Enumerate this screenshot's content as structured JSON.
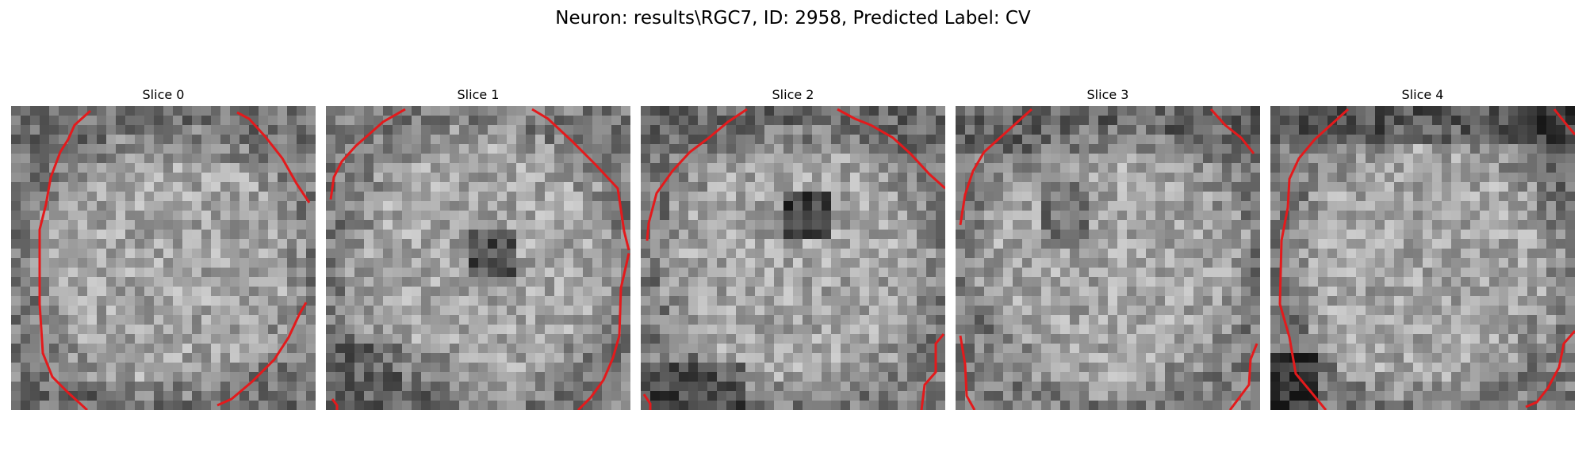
{
  "figure": {
    "title": "Neuron: results\\RGC7, ID: 2958, Predicted Label: CV"
  },
  "slices": [
    {
      "title": "Slice 0"
    },
    {
      "title": "Slice 1"
    },
    {
      "title": "Slice 2"
    },
    {
      "title": "Slice 3"
    },
    {
      "title": "Slice 4"
    }
  ],
  "colors": {
    "background": "#ffffff",
    "contour": "#e31a1c",
    "image_dark": "#161616",
    "image_light": "#f2f2f2"
  }
}
